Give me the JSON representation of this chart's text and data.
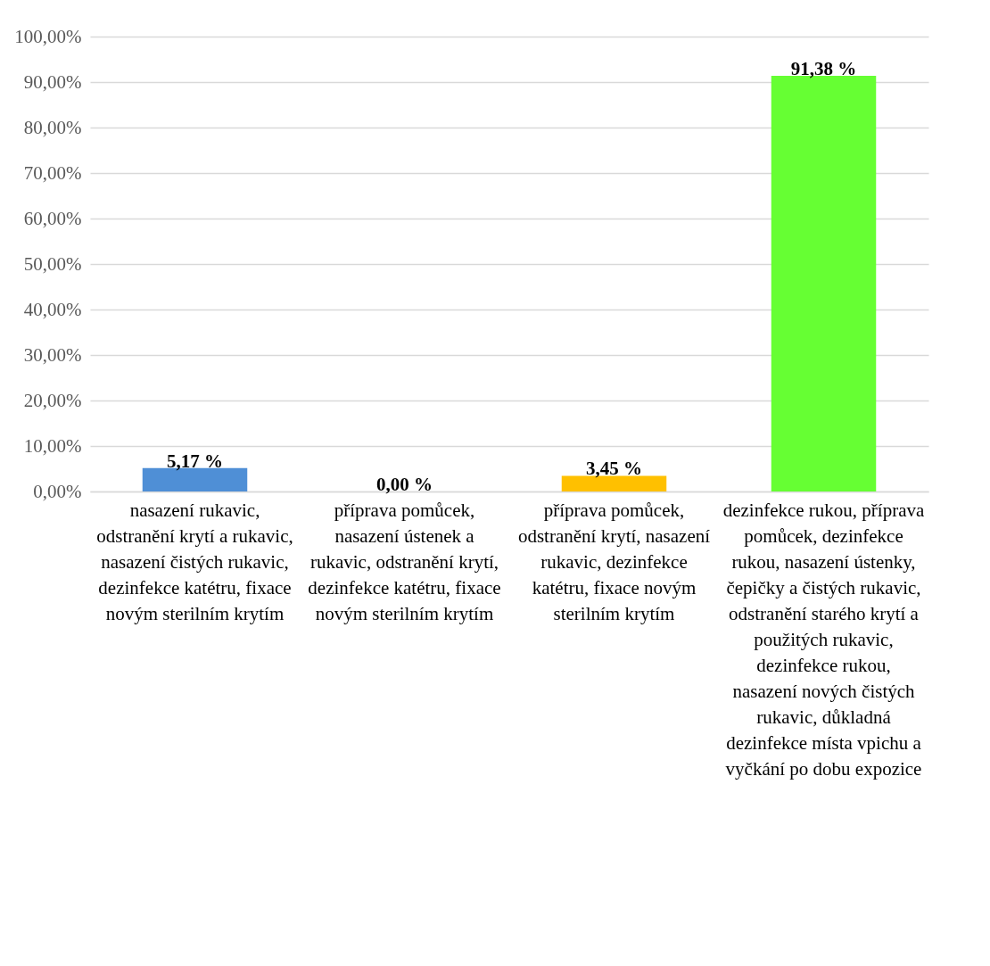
{
  "chart_data": {
    "type": "bar",
    "categories": [
      "nasazení rukavic, odstranění krytí a rukavic, nasazení čistých rukavic, dezinfekce katétru, fixace novým sterilním krytím",
      "příprava pomůcek, nasazení ústenek a rukavic, odstranění krytí, dezinfekce katétru, fixace novým sterilním krytím",
      "příprava pomůcek, odstranění krytí, nasazení rukavic, dezinfekce katétru, fixace novým sterilním krytím",
      "dezinfekce rukou, příprava pomůcek, dezinfekce rukou, nasazení ústenky, čepičky a čistých rukavic, odstranění starého krytí a použitých rukavic, dezinfekce rukou, nasazení nových čistých rukavic, důkladná dezinfekce místa vpichu a vyčkání po dobu expozice"
    ],
    "values": [
      5.17,
      0,
      3.45,
      91.38
    ],
    "colors": [
      "#4f8fd6",
      "#a5a5a5",
      "#ffc000",
      "#66ff33"
    ],
    "value_labels": [
      "5,17 %",
      "0,00 %",
      "3,45 %",
      "91,38 %"
    ],
    "ylim": [
      0,
      100
    ],
    "yticks": [
      {
        "value": 0,
        "label": "0,00%"
      },
      {
        "value": 10,
        "label": "10,00%"
      },
      {
        "value": 20,
        "label": "20,00%"
      },
      {
        "value": 30,
        "label": "30,00%"
      },
      {
        "value": 40,
        "label": "40,00%"
      },
      {
        "value": 50,
        "label": "50,00%"
      },
      {
        "value": 60,
        "label": "60,00%"
      },
      {
        "value": 70,
        "label": "70,00%"
      },
      {
        "value": 80,
        "label": "80,00%"
      },
      {
        "value": 90,
        "label": "90,00%"
      },
      {
        "value": 100,
        "label": "100,00%"
      }
    ],
    "grid": "y"
  }
}
